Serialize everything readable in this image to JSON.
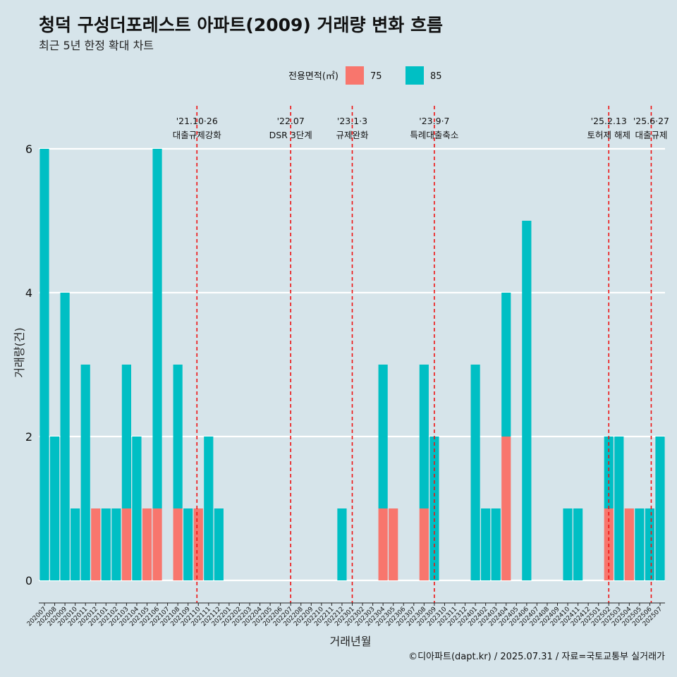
{
  "chart_data": {
    "type": "bar",
    "title": "청덕 구성더포레스트 아파트(2009) 거래량 변화 흐름",
    "subtitle": "최근 5년 한정 확대 차트",
    "xlabel": "거래년월",
    "ylabel": "거래량(건)",
    "caption": "©디아파트(dapt.kr) / 2025.07.31 / 자료=국토교통부 실거래가",
    "ylim": [
      0,
      6
    ],
    "yticks": [
      "0",
      "2",
      "4",
      "6"
    ],
    "grid": true,
    "legend": {
      "title": "전용면적(㎡)",
      "position": "top-center",
      "items": [
        {
          "label": "75",
          "color": "#f8766d"
        },
        {
          "label": "85",
          "color": "#00bfc4"
        }
      ]
    },
    "categories": [
      "202007",
      "202008",
      "202009",
      "202010",
      "202011",
      "202012",
      "202101",
      "202102",
      "202103",
      "202104",
      "202105",
      "202106",
      "202107",
      "202108",
      "202109",
      "202110",
      "202111",
      "202112",
      "202201",
      "202202",
      "202203",
      "202204",
      "202205",
      "202206",
      "202207",
      "202208",
      "202209",
      "202210",
      "202211",
      "202212",
      "202301",
      "202302",
      "202303",
      "202304",
      "202305",
      "202306",
      "202307",
      "202308",
      "202309",
      "202310",
      "202311",
      "202312",
      "202401",
      "202402",
      "202403",
      "202404",
      "202405",
      "202406",
      "202407",
      "202408",
      "202409",
      "202410",
      "202411",
      "202412",
      "202501",
      "202502",
      "202503",
      "202504",
      "202505",
      "202506",
      "202507"
    ],
    "series": [
      {
        "name": "75",
        "color": "#f8766d",
        "values": [
          0,
          0,
          0,
          0,
          0,
          1,
          0,
          0,
          1,
          0,
          1,
          1,
          0,
          1,
          0,
          1,
          0,
          0,
          0,
          0,
          0,
          0,
          0,
          0,
          0,
          0,
          0,
          0,
          0,
          0,
          0,
          0,
          0,
          1,
          1,
          0,
          0,
          1,
          0,
          0,
          0,
          0,
          0,
          0,
          0,
          2,
          0,
          0,
          0,
          0,
          0,
          0,
          0,
          0,
          0,
          1,
          0,
          1,
          0,
          0,
          0
        ]
      },
      {
        "name": "85",
        "color": "#00bfc4",
        "values": [
          6,
          2,
          4,
          1,
          3,
          0,
          1,
          1,
          2,
          2,
          0,
          5,
          0,
          2,
          1,
          0,
          2,
          1,
          0,
          0,
          0,
          0,
          0,
          0,
          0,
          0,
          0,
          0,
          0,
          1,
          0,
          0,
          0,
          2,
          0,
          0,
          0,
          2,
          2,
          0,
          0,
          0,
          3,
          1,
          1,
          2,
          0,
          5,
          0,
          0,
          0,
          1,
          1,
          0,
          0,
          1,
          2,
          0,
          1,
          1,
          2
        ]
      }
    ],
    "annotations": [
      {
        "date": "'21.10·26",
        "label": "대출규제강화",
        "category": "202110"
      },
      {
        "date": "'22.07",
        "label": "DSR 3단계",
        "category": "202207"
      },
      {
        "date": "'23.1·3",
        "label": "규제완화",
        "category": "202301"
      },
      {
        "date": "'23.9·7",
        "label": "특례대출축소",
        "category": "202309"
      },
      {
        "date": "'25.2.13",
        "label": "토허제 해제",
        "category": "202502"
      },
      {
        "date": "'25.6·27",
        "label": "대출규제",
        "category": "202506"
      }
    ]
  }
}
